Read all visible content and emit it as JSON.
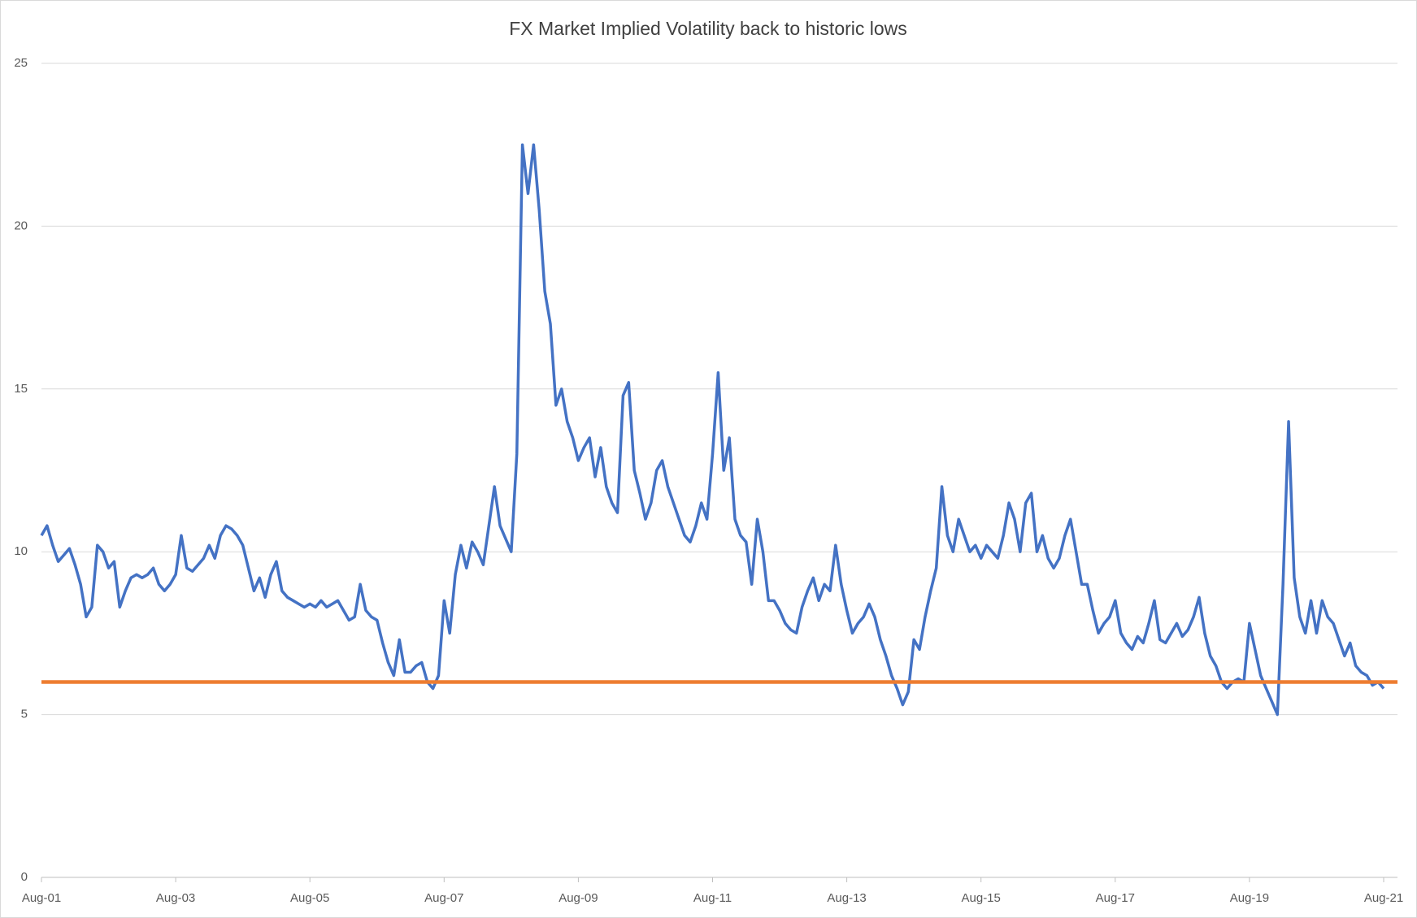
{
  "chart_data": {
    "type": "line",
    "title": "FX Market Implied Volatility back to historic lows",
    "categories": [
      "Aug-01",
      null,
      null,
      null,
      null,
      null,
      null,
      null,
      null,
      null,
      null,
      null,
      null,
      null,
      null,
      null,
      null,
      null,
      null,
      null,
      null,
      null,
      null,
      null,
      "Aug-03",
      null,
      null,
      null,
      null,
      null,
      null,
      null,
      null,
      null,
      null,
      null,
      null,
      null,
      null,
      null,
      null,
      null,
      null,
      null,
      null,
      null,
      null,
      null,
      "Aug-05",
      null,
      null,
      null,
      null,
      null,
      null,
      null,
      null,
      null,
      null,
      null,
      null,
      null,
      null,
      null,
      null,
      null,
      null,
      null,
      null,
      null,
      null,
      null,
      "Aug-07",
      null,
      null,
      null,
      null,
      null,
      null,
      null,
      null,
      null,
      null,
      null,
      null,
      null,
      null,
      null,
      null,
      null,
      null,
      null,
      null,
      null,
      null,
      null,
      "Aug-09",
      null,
      null,
      null,
      null,
      null,
      null,
      null,
      null,
      null,
      null,
      null,
      null,
      null,
      null,
      null,
      null,
      null,
      null,
      null,
      null,
      null,
      null,
      null,
      "Aug-11",
      null,
      null,
      null,
      null,
      null,
      null,
      null,
      null,
      null,
      null,
      null,
      null,
      null,
      null,
      null,
      null,
      null,
      null,
      null,
      null,
      null,
      null,
      null,
      "Aug-13",
      null,
      null,
      null,
      null,
      null,
      null,
      null,
      null,
      null,
      null,
      null,
      null,
      null,
      null,
      null,
      null,
      null,
      null,
      null,
      null,
      null,
      null,
      null,
      "Aug-15",
      null,
      null,
      null,
      null,
      null,
      null,
      null,
      null,
      null,
      null,
      null,
      null,
      null,
      null,
      null,
      null,
      null,
      null,
      null,
      null,
      null,
      null,
      null,
      "Aug-17",
      null,
      null,
      null,
      null,
      null,
      null,
      null,
      null,
      null,
      null,
      null,
      null,
      null,
      null,
      null,
      null,
      null,
      null,
      null,
      null,
      null,
      null,
      null,
      "Aug-19",
      null,
      null,
      null,
      null,
      null,
      null,
      null,
      null,
      null,
      null,
      null,
      null,
      null,
      null,
      null,
      null,
      null,
      null,
      null,
      null,
      null,
      null,
      null,
      "Aug-21"
    ],
    "values": [
      10.5,
      10.8,
      10.2,
      9.7,
      9.9,
      10.1,
      9.6,
      9.0,
      8.0,
      8.3,
      10.2,
      10.0,
      9.5,
      9.7,
      8.3,
      8.8,
      9.2,
      9.3,
      9.2,
      9.3,
      9.5,
      9.0,
      8.8,
      9.0,
      9.3,
      10.5,
      9.5,
      9.4,
      9.6,
      9.8,
      10.2,
      9.8,
      10.5,
      10.8,
      10.7,
      10.5,
      10.2,
      9.5,
      8.8,
      9.2,
      8.6,
      9.3,
      9.7,
      8.8,
      8.6,
      8.5,
      8.4,
      8.3,
      8.4,
      8.3,
      8.5,
      8.3,
      8.4,
      8.5,
      8.2,
      7.9,
      8.0,
      9.0,
      8.2,
      8.0,
      7.9,
      7.2,
      6.6,
      6.2,
      7.3,
      6.3,
      6.3,
      6.5,
      6.6,
      6.0,
      5.8,
      6.2,
      8.5,
      7.5,
      9.3,
      10.2,
      9.5,
      10.3,
      10.0,
      9.6,
      10.8,
      12.0,
      10.8,
      10.4,
      10.0,
      13.0,
      22.5,
      21.0,
      22.5,
      20.5,
      18.0,
      17.0,
      14.5,
      15.0,
      14.0,
      13.5,
      12.8,
      13.2,
      13.5,
      12.3,
      13.2,
      12.0,
      11.5,
      11.2,
      14.8,
      15.2,
      12.5,
      11.8,
      11.0,
      11.5,
      12.5,
      12.8,
      12.0,
      11.5,
      11.0,
      10.5,
      10.3,
      10.8,
      11.5,
      11.0,
      13.0,
      15.5,
      12.5,
      13.5,
      11.0,
      10.5,
      10.3,
      9.0,
      11.0,
      10.0,
      8.5,
      8.5,
      8.2,
      7.8,
      7.6,
      7.5,
      8.3,
      8.8,
      9.2,
      8.5,
      9.0,
      8.8,
      10.2,
      9.0,
      8.2,
      7.5,
      7.8,
      8.0,
      8.4,
      8.0,
      7.3,
      6.8,
      6.2,
      5.8,
      5.3,
      5.7,
      7.3,
      7.0,
      8.0,
      8.8,
      9.5,
      12.0,
      10.5,
      10.0,
      11.0,
      10.5,
      10.0,
      10.2,
      9.8,
      10.2,
      10.0,
      9.8,
      10.5,
      11.5,
      11.0,
      10.0,
      11.5,
      11.8,
      10.0,
      10.5,
      9.8,
      9.5,
      9.8,
      10.5,
      11.0,
      10.0,
      9.0,
      9.0,
      8.2,
      7.5,
      7.8,
      8.0,
      8.5,
      7.5,
      7.2,
      7.0,
      7.4,
      7.2,
      7.8,
      8.5,
      7.3,
      7.2,
      7.5,
      7.8,
      7.4,
      7.6,
      8.0,
      8.6,
      7.5,
      6.8,
      6.5,
      6.0,
      5.8,
      6.0,
      6.1,
      6.0,
      7.8,
      7.0,
      6.2,
      5.8,
      5.4,
      5.0,
      9.0,
      14.0,
      9.2,
      8.0,
      7.5,
      8.5,
      7.5,
      8.5,
      8.0,
      7.8,
      7.3,
      6.8,
      7.2,
      6.5,
      6.3,
      6.2,
      5.9,
      6.0,
      5.8
    ],
    "color": "#4472c4",
    "hline": {
      "value": 6,
      "color": "#ed7d31"
    },
    "ylim": [
      0,
      25
    ],
    "yticks": [
      0,
      5,
      10,
      15,
      20,
      25
    ],
    "grid": true
  }
}
